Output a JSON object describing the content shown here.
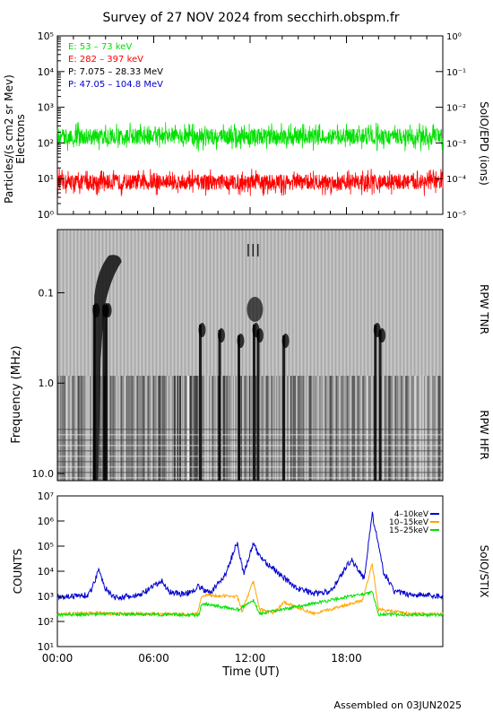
{
  "title": "Survey of 27 NOV 2024 from secchirh.obspm.fr",
  "footer": "Assembled on 03JUN2025",
  "colors": {
    "green": "#00e000",
    "red": "#ff0000",
    "black": "#000000",
    "blue": "#0000d0",
    "orange": "#ffa500"
  },
  "chart_data": [
    {
      "type": "line",
      "panel": "SoIO/EPD",
      "ylabel_left": "Particles/(s cm2 sr Mev)",
      "ylabel_left2": "Electrons",
      "ylabel_right": "SoIO/EPD (ions)",
      "yscale": "log",
      "ylim": [
        1,
        100000
      ],
      "yticks_left": [
        "10⁰",
        "10¹",
        "10²",
        "10³",
        "10⁴",
        "10⁵"
      ],
      "yticks_right": [
        "10⁻⁵",
        "10⁻⁴",
        "10⁻³",
        "10⁻²",
        "10⁻¹",
        "10⁰"
      ],
      "xlim_hours": [
        0,
        24
      ],
      "legend": [
        {
          "label": "E: 53 – 73 keV",
          "color": "#00e000"
        },
        {
          "label": "E: 282 – 397 keV",
          "color": "#ff0000"
        },
        {
          "label": "P: 7.075 – 28.33 MeV",
          "color": "#000000"
        },
        {
          "label": "P: 47.05 – 104.8 MeV",
          "color": "#0000d0"
        }
      ],
      "series": [
        {
          "name": "E: 53 – 73 keV",
          "typical_value": 150,
          "range": [
            60,
            400
          ]
        },
        {
          "name": "E: 282 – 397 keV",
          "typical_value": 8,
          "range": [
            4,
            25
          ]
        }
      ]
    },
    {
      "type": "heatmap",
      "panel": "RPW",
      "ylabel": "Frequency (MHz)",
      "yscale": "log-inverted",
      "ylim": [
        0.02,
        12
      ],
      "yticks": [
        "0.1",
        "1.0",
        "10.0"
      ],
      "label_tnr": "RPW TNR",
      "label_hfr": "RPW HFR",
      "bursts_hours": [
        2.3,
        2.9,
        3.05,
        8.9,
        10.1,
        11.3,
        12.25,
        12.5,
        14.1,
        19.8,
        20.1
      ]
    },
    {
      "type": "line",
      "panel": "SoIO/STIX",
      "ylabel": "COUNTS",
      "ylabel_right": "SoIO/STIX",
      "xlabel": "Time (UT)",
      "yscale": "log",
      "ylim": [
        10,
        10000000
      ],
      "yticks": [
        "10¹",
        "10²",
        "10³",
        "10⁴",
        "10⁵",
        "10⁶",
        "10⁷"
      ],
      "x_ticks": [
        "00:00",
        "06:00",
        "12:00",
        "18:00"
      ],
      "legend": [
        {
          "label": "4–10keV",
          "color": "#0000d0"
        },
        {
          "label": "10–15keV",
          "color": "#ffa500"
        },
        {
          "label": "15–25keV",
          "color": "#00e000"
        }
      ],
      "series": [
        {
          "name": "4–10keV",
          "x": [
            0,
            1,
            2,
            2.6,
            3,
            3.5,
            5,
            6.5,
            7,
            8,
            8.8,
            9.5,
            10.5,
            11.2,
            11.6,
            12.2,
            12.6,
            13.3,
            14,
            15,
            16,
            17,
            18.3,
            19.1,
            19.6,
            20.3,
            21,
            22,
            23,
            24
          ],
          "y": [
            1000,
            1000,
            1200,
            12000,
            2000,
            900,
            1000,
            4000,
            1500,
            1200,
            2500,
            1300,
            8000,
            150000,
            8000,
            120000,
            40000,
            15000,
            6000,
            2000,
            1300,
            1500,
            30000,
            5000,
            2000000,
            10000,
            1500,
            1200,
            1100,
            1000
          ]
        },
        {
          "name": "10–15keV",
          "x": [
            0,
            2.6,
            3,
            8.7,
            9,
            11.2,
            11.5,
            12.2,
            12.6,
            13.5,
            14.1,
            16,
            19.0,
            19.6,
            20.0,
            22,
            24
          ],
          "y": [
            200,
            220,
            200,
            200,
            1100,
            1000,
            250,
            4000,
            300,
            220,
            600,
            200,
            700,
            20000,
            300,
            200,
            200
          ]
        },
        {
          "name": "15–25keV",
          "x": [
            0,
            3,
            8.8,
            9,
            11.3,
            12.2,
            12.6,
            19.6,
            20,
            24
          ],
          "y": [
            180,
            200,
            180,
            500,
            300,
            700,
            200,
            1500,
            190,
            180
          ]
        }
      ]
    }
  ]
}
